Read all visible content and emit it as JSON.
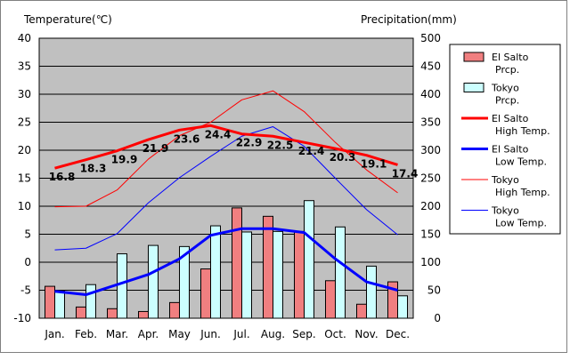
{
  "chart_data": {
    "type": "bar",
    "left_axis_title": "Temperature(℃)",
    "right_axis_title": "Precipitation(mm)",
    "categories": [
      "Jan.",
      "Feb.",
      "Mar.",
      "Apr.",
      "May",
      "Jun.",
      "Jul.",
      "Aug.",
      "Sep.",
      "Oct.",
      "Nov.",
      "Dec."
    ],
    "left_axis": {
      "min": -10,
      "max": 40,
      "ticks": [
        40,
        35,
        30,
        25,
        20,
        15,
        10,
        5,
        0,
        -5,
        -10
      ]
    },
    "right_axis": {
      "min": 0,
      "max": 500,
      "ticks": [
        500,
        450,
        400,
        350,
        300,
        250,
        200,
        150,
        100,
        50,
        0
      ]
    },
    "grid": true,
    "legend_position": "right",
    "bar_series": [
      {
        "name": "El Salto Prcp.",
        "legend_label": [
          "El Salto",
          "Prcp."
        ],
        "color": "#f07f80",
        "axis": "right",
        "values": [
          57,
          20,
          17,
          12,
          28,
          88,
          197,
          182,
          155,
          67,
          25,
          65
        ]
      },
      {
        "name": "Tokyo Prcp.",
        "legend_label": [
          "Tokyo",
          "Prcp."
        ],
        "color": "#ccffff",
        "axis": "right",
        "values": [
          49,
          60,
          115,
          130,
          128,
          165,
          154,
          155,
          210,
          163,
          93,
          40
        ]
      }
    ],
    "line_series": [
      {
        "name": "El Salto High Temp.",
        "legend_label": [
          "El Salto",
          "High Temp."
        ],
        "color": "#ff0000",
        "width": 3,
        "axis": "left",
        "values": [
          16.8,
          18.3,
          19.9,
          21.9,
          23.6,
          24.4,
          22.9,
          22.5,
          21.4,
          20.3,
          19.1,
          17.4
        ],
        "data_labels": [
          "16.8",
          "18.3",
          "19.9",
          "21.9",
          "23.6",
          "24.4",
          "22.9",
          "22.5",
          "21.4",
          "20.3",
          "19.1",
          "17.4"
        ]
      },
      {
        "name": "El Salto Low Temp.",
        "legend_label": [
          "El Salto",
          "Low Temp."
        ],
        "color": "#0000ff",
        "width": 3,
        "axis": "left",
        "values": [
          -5.2,
          -5.8,
          -4.0,
          -2.2,
          0.6,
          4.8,
          6.0,
          6.0,
          5.3,
          0.6,
          -3.5,
          -5.0
        ]
      },
      {
        "name": "Tokyo High Temp.",
        "legend_label": [
          "Tokyo",
          "High Temp."
        ],
        "color": "#ff0000",
        "width": 1,
        "axis": "left",
        "values": [
          9.9,
          10.0,
          12.9,
          18.4,
          22.6,
          25.0,
          29.0,
          30.6,
          26.9,
          21.4,
          16.5,
          12.4
        ]
      },
      {
        "name": "Tokyo Low Temp.",
        "legend_label": [
          "Tokyo",
          "Low Temp."
        ],
        "color": "#0000ff",
        "width": 1,
        "axis": "left",
        "values": [
          2.2,
          2.5,
          5.1,
          10.6,
          15.1,
          18.9,
          22.5,
          24.2,
          20.7,
          15.0,
          9.4,
          4.9
        ]
      }
    ]
  }
}
